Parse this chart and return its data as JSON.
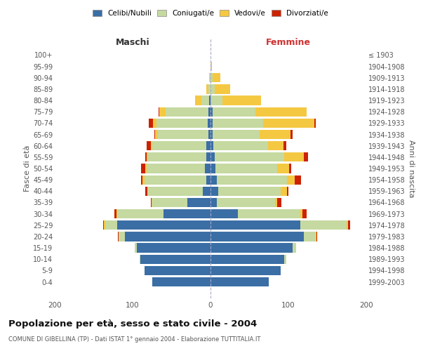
{
  "age_groups": [
    "0-4",
    "5-9",
    "10-14",
    "15-19",
    "20-24",
    "25-29",
    "30-34",
    "35-39",
    "40-44",
    "45-49",
    "50-54",
    "55-59",
    "60-64",
    "65-69",
    "70-74",
    "75-79",
    "80-84",
    "85-89",
    "90-94",
    "95-99",
    "100+"
  ],
  "birth_years": [
    "1999-2003",
    "1994-1998",
    "1989-1993",
    "1984-1988",
    "1979-1983",
    "1974-1978",
    "1969-1973",
    "1964-1968",
    "1959-1963",
    "1954-1958",
    "1949-1953",
    "1944-1948",
    "1939-1943",
    "1934-1938",
    "1929-1933",
    "1924-1928",
    "1919-1923",
    "1914-1918",
    "1909-1913",
    "1904-1908",
    "≤ 1903"
  ],
  "colors": {
    "celibi": "#3a6ea5",
    "coniugati": "#c5d9a0",
    "vedovi": "#f5c842",
    "divorziati": "#cc2200"
  },
  "maschi": {
    "celibi": [
      75,
      85,
      90,
      95,
      110,
      120,
      60,
      30,
      10,
      5,
      7,
      5,
      5,
      3,
      4,
      3,
      2,
      0,
      0,
      0,
      0
    ],
    "coniugati": [
      0,
      0,
      1,
      2,
      8,
      15,
      60,
      45,
      70,
      80,
      75,
      75,
      70,
      65,
      65,
      55,
      10,
      3,
      2,
      0,
      0
    ],
    "vedovi": [
      0,
      0,
      0,
      0,
      0,
      2,
      1,
      1,
      1,
      2,
      2,
      2,
      2,
      3,
      5,
      8,
      8,
      2,
      0,
      0,
      0
    ],
    "divorziati": [
      0,
      0,
      0,
      0,
      1,
      1,
      2,
      1,
      3,
      2,
      5,
      2,
      5,
      1,
      5,
      1,
      0,
      0,
      0,
      0,
      0
    ]
  },
  "femmine": {
    "celibi": [
      75,
      90,
      95,
      105,
      120,
      115,
      35,
      8,
      10,
      8,
      6,
      5,
      4,
      3,
      3,
      3,
      0,
      0,
      0,
      0,
      0
    ],
    "coniugati": [
      0,
      0,
      2,
      5,
      15,
      60,
      80,
      75,
      80,
      90,
      80,
      90,
      70,
      60,
      65,
      55,
      15,
      5,
      3,
      0,
      0
    ],
    "vedovi": [
      0,
      0,
      0,
      0,
      1,
      2,
      3,
      3,
      8,
      10,
      15,
      25,
      20,
      40,
      65,
      65,
      50,
      20,
      10,
      2,
      0
    ],
    "divorziati": [
      0,
      0,
      0,
      0,
      1,
      2,
      5,
      5,
      2,
      8,
      3,
      5,
      3,
      2,
      2,
      0,
      0,
      0,
      0,
      0,
      0
    ]
  },
  "title": "Popolazione per età, sesso e stato civile - 2004",
  "subtitle": "COMUNE DI GIBELLINA (TP) - Dati ISTAT 1° gennaio 2004 - Elaborazione TUTTITALIA.IT",
  "xlabel_left": "Maschi",
  "xlabel_right": "Femmine",
  "ylabel_left": "Fasce di età",
  "ylabel_right": "Anni di nascita",
  "xlim": 200,
  "background_color": "#ffffff",
  "legend_labels": [
    "Celibi/Nubili",
    "Coniugati/e",
    "Vedovi/e",
    "Divorziati/e"
  ]
}
